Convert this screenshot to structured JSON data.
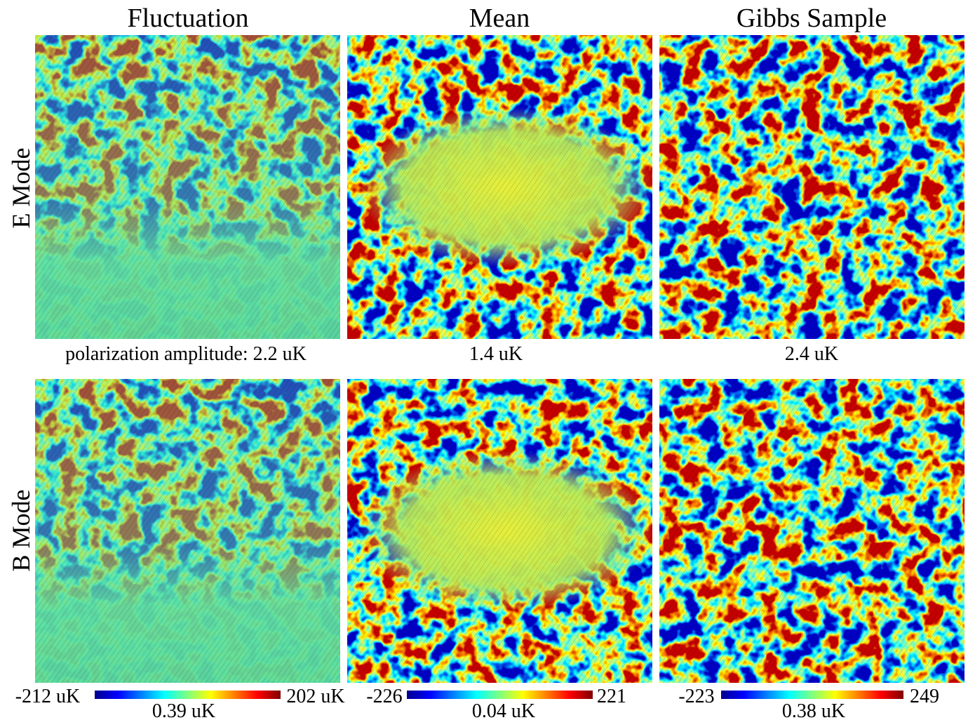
{
  "columns": [
    "Fluctuation",
    "Mean",
    "Gibbs Sample"
  ],
  "rows": [
    "E Mode",
    "B Mode"
  ],
  "amplitude_labels": [
    "polarization amplitude: 2.2 uK",
    "1.4 uK",
    "2.4 uK"
  ],
  "colorbars": [
    {
      "min_label": "-212 uK",
      "max_label": "202 uK",
      "center_label": "0.39 uK"
    },
    {
      "min_label": "-226",
      "max_label": "221",
      "center_label": "0.04 uK"
    },
    {
      "min_label": "-223",
      "max_label": "249",
      "center_label": "0.38 uK"
    }
  ]
}
